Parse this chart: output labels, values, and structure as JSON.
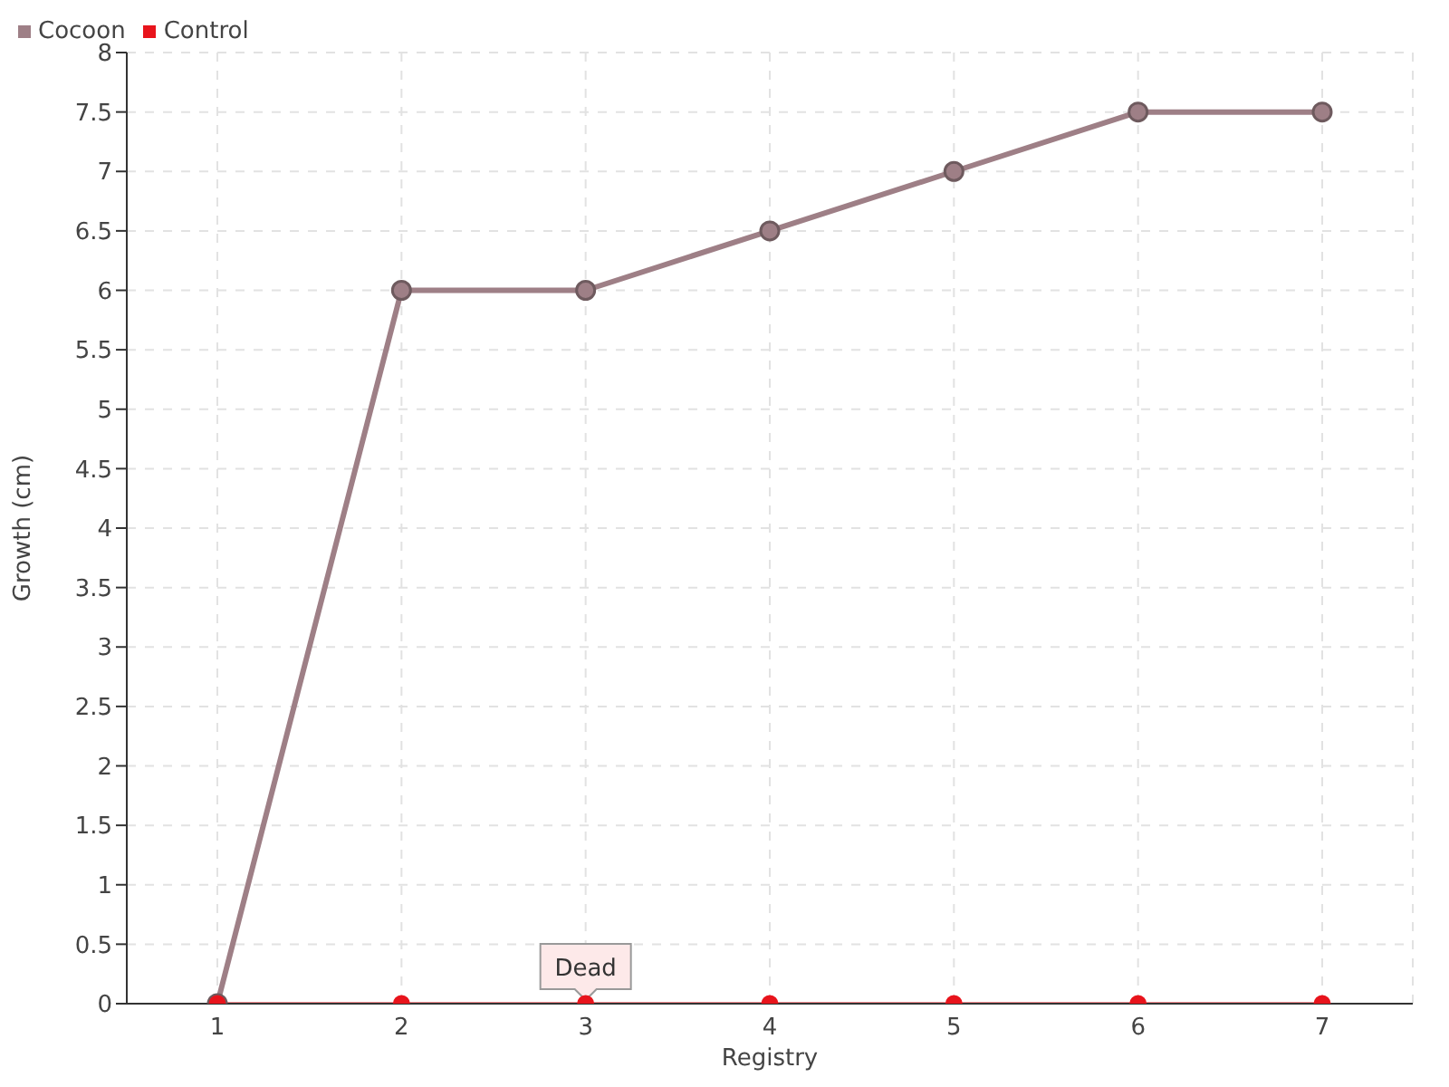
{
  "chart_data": {
    "type": "line",
    "xlabel": "Registry",
    "ylabel": "Growth (cm)",
    "categories": [
      "1",
      "2",
      "3",
      "4",
      "5",
      "6",
      "7"
    ],
    "series": [
      {
        "name": "Cocoon",
        "color": "#9e7f86",
        "values": [
          0,
          6,
          6,
          6.5,
          7,
          7.5,
          7.5
        ]
      },
      {
        "name": "Control",
        "color": "#e8141c",
        "values": [
          0,
          0,
          0,
          0,
          0,
          0,
          0
        ]
      }
    ],
    "ylim": [
      0,
      8
    ],
    "yticks": [
      0,
      0.5,
      1,
      1.5,
      2,
      2.5,
      3,
      3.5,
      4,
      4.5,
      5,
      5.5,
      6,
      6.5,
      7,
      7.5,
      8
    ],
    "annotations": [
      {
        "text": "Dead",
        "x": "3",
        "y": 0
      }
    ],
    "grid": true,
    "legend": "top left",
    "marker": "circle",
    "line_style": "solid"
  }
}
